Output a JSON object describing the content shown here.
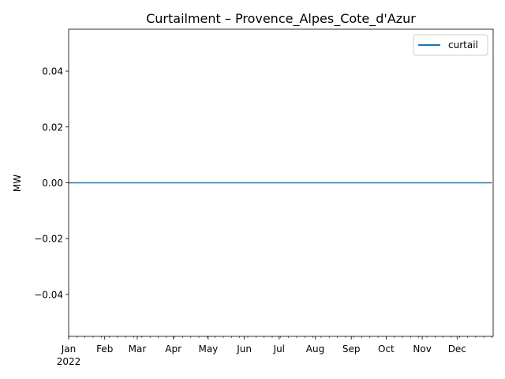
{
  "chart_data": {
    "type": "line",
    "title": "Curtailment – Provence_Alpes_Cote_d'Azur",
    "xlabel": "",
    "ylabel": "MW",
    "x_range": [
      "2022-01-01",
      "2022-12-31"
    ],
    "ylim": [
      -0.055,
      0.055
    ],
    "x_ticks": [
      {
        "label": "Jan",
        "date": "2022-01-01"
      },
      {
        "label": "Feb",
        "date": "2022-02-01"
      },
      {
        "label": "Mar",
        "date": "2022-03-01"
      },
      {
        "label": "Apr",
        "date": "2022-04-01"
      },
      {
        "label": "May",
        "date": "2022-05-01"
      },
      {
        "label": "Jun",
        "date": "2022-06-01"
      },
      {
        "label": "Jul",
        "date": "2022-07-01"
      },
      {
        "label": "Aug",
        "date": "2022-08-01"
      },
      {
        "label": "Sep",
        "date": "2022-09-01"
      },
      {
        "label": "Oct",
        "date": "2022-10-01"
      },
      {
        "label": "Nov",
        "date": "2022-11-01"
      },
      {
        "label": "Dec",
        "date": "2022-12-01"
      }
    ],
    "x_year_label": "2022",
    "y_ticks": [
      {
        "label": "0.04",
        "value": 0.04
      },
      {
        "label": "0.02",
        "value": 0.02
      },
      {
        "label": "0.00",
        "value": 0.0
      },
      {
        "label": "−0.02",
        "value": -0.02
      },
      {
        "label": "−0.04",
        "value": -0.04
      }
    ],
    "grid": false,
    "legend_position": "top-right",
    "series": [
      {
        "name": "curtail",
        "color": "#1f77b4",
        "x": [
          "2022-01-01",
          "2022-12-31"
        ],
        "values": [
          0,
          0
        ]
      }
    ]
  }
}
